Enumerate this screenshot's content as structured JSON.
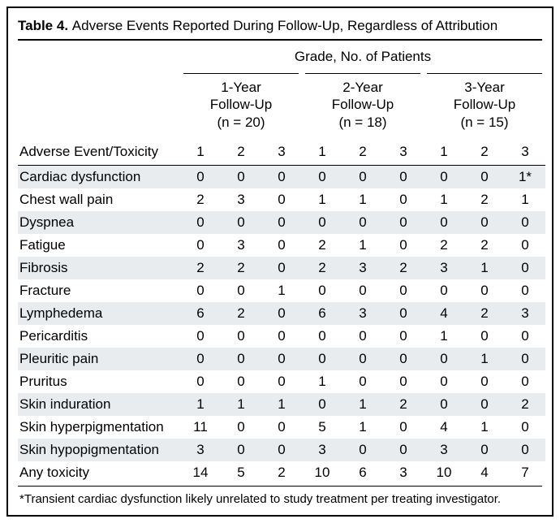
{
  "table": {
    "type": "table",
    "number": "Table 4.",
    "caption": "Adverse Events Reported During Follow-Up, Regardless of Attribution",
    "spanner": "Grade, No. of Patients",
    "groups": [
      {
        "line1": "1-Year",
        "line2": "Follow-Up",
        "line3": "(n = 20)"
      },
      {
        "line1": "2-Year",
        "line2": "Follow-Up",
        "line3": "(n = 18)"
      },
      {
        "line1": "3-Year",
        "line2": "Follow-Up",
        "line3": "(n = 15)"
      }
    ],
    "row_header": "Adverse Event/Toxicity",
    "grade_labels": [
      "1",
      "2",
      "3",
      "1",
      "2",
      "3",
      "1",
      "2",
      "3"
    ],
    "rows": [
      {
        "label": "Cardiac dysfunction",
        "v": [
          "0",
          "0",
          "0",
          "0",
          "0",
          "0",
          "0",
          "0",
          "1*"
        ],
        "shade": true
      },
      {
        "label": "Chest wall pain",
        "v": [
          "2",
          "3",
          "0",
          "1",
          "1",
          "0",
          "1",
          "2",
          "1"
        ],
        "shade": false
      },
      {
        "label": "Dyspnea",
        "v": [
          "0",
          "0",
          "0",
          "0",
          "0",
          "0",
          "0",
          "0",
          "0"
        ],
        "shade": true
      },
      {
        "label": "Fatigue",
        "v": [
          "0",
          "3",
          "0",
          "2",
          "1",
          "0",
          "2",
          "2",
          "0"
        ],
        "shade": false
      },
      {
        "label": "Fibrosis",
        "v": [
          "2",
          "2",
          "0",
          "2",
          "3",
          "2",
          "3",
          "1",
          "0"
        ],
        "shade": true
      },
      {
        "label": "Fracture",
        "v": [
          "0",
          "0",
          "1",
          "0",
          "0",
          "0",
          "0",
          "0",
          "0"
        ],
        "shade": false
      },
      {
        "label": "Lymphedema",
        "v": [
          "6",
          "2",
          "0",
          "6",
          "3",
          "0",
          "4",
          "2",
          "3"
        ],
        "shade": true
      },
      {
        "label": "Pericarditis",
        "v": [
          "0",
          "0",
          "0",
          "0",
          "0",
          "0",
          "1",
          "0",
          "0"
        ],
        "shade": false
      },
      {
        "label": "Pleuritic pain",
        "v": [
          "0",
          "0",
          "0",
          "0",
          "0",
          "0",
          "0",
          "1",
          "0"
        ],
        "shade": true
      },
      {
        "label": "Pruritus",
        "v": [
          "0",
          "0",
          "0",
          "1",
          "0",
          "0",
          "0",
          "0",
          "0"
        ],
        "shade": false
      },
      {
        "label": "Skin induration",
        "v": [
          "1",
          "1",
          "1",
          "0",
          "1",
          "2",
          "0",
          "0",
          "2"
        ],
        "shade": true
      },
      {
        "label": "Skin hyperpigmentation",
        "v": [
          "11",
          "0",
          "0",
          "5",
          "1",
          "0",
          "4",
          "1",
          "0"
        ],
        "shade": false
      },
      {
        "label": "Skin hypopigmentation",
        "v": [
          "3",
          "0",
          "0",
          "3",
          "0",
          "0",
          "3",
          "0",
          "0"
        ],
        "shade": true
      },
      {
        "label": "Any toxicity",
        "v": [
          "14",
          "5",
          "2",
          "10",
          "6",
          "3",
          "10",
          "4",
          "7"
        ],
        "shade": false
      }
    ],
    "footnote": "*Transient cardiac dysfunction likely unrelated to study treatment per treating investigator.",
    "colors": {
      "border": "#000000",
      "text": "#000000",
      "shade_bg": "#e8ecee",
      "background": "#ffffff"
    },
    "font": {
      "family": "Arial",
      "body_size_pt": 12,
      "title_size_pt": 12
    }
  }
}
